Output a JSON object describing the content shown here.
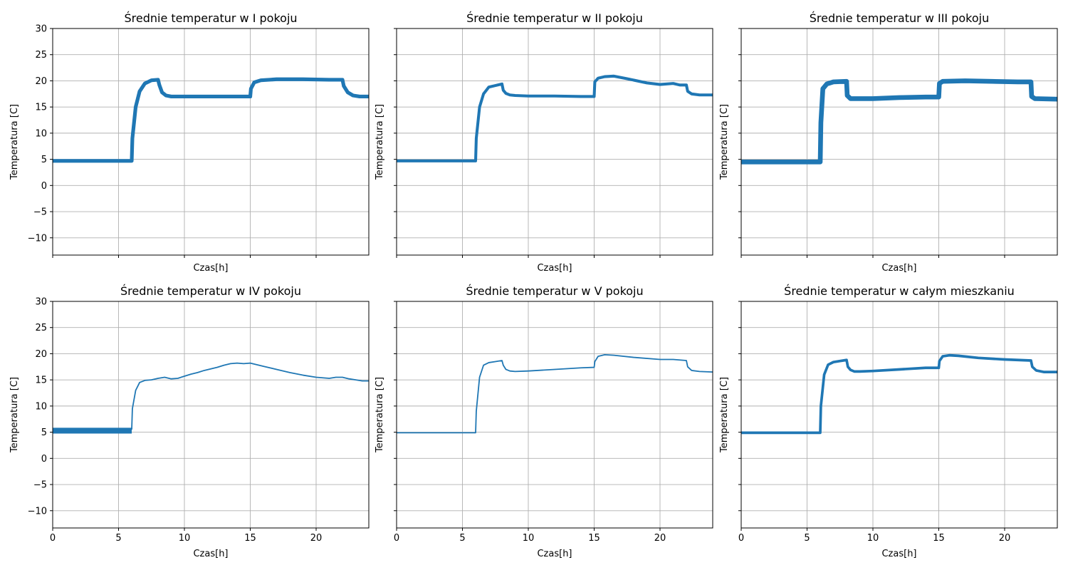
{
  "chart_data": [
    {
      "type": "line",
      "title": "Średnie temperatur w I pokoju",
      "xlabel": "Czas[h]",
      "ylabel": "Temperatura [C]",
      "xlim": [
        0,
        24
      ],
      "ylim": [
        -13.3,
        30
      ],
      "xticks": [
        0,
        5,
        10,
        15,
        20
      ],
      "yticks": [
        -10,
        -5,
        0,
        5,
        10,
        15,
        20,
        25,
        30
      ],
      "grid": true,
      "show_xticklabels": false,
      "show_yticklabels": true,
      "color": "#1f77b4",
      "band": 0.5,
      "series": [
        {
          "x": [
            0,
            6.0,
            6.05,
            6.3,
            6.6,
            7.0,
            7.5,
            8.0,
            8.1,
            8.3,
            8.6,
            9.0,
            10,
            12,
            14,
            15.0,
            15.05,
            15.3,
            15.8,
            17,
            19,
            21,
            22.0,
            22.1,
            22.4,
            22.8,
            23.3,
            24
          ],
          "y": [
            4.7,
            4.7,
            9,
            15,
            18,
            19.5,
            20.1,
            20.2,
            19.2,
            17.8,
            17.2,
            17.0,
            17.0,
            17.0,
            17.0,
            17.0,
            18.5,
            19.7,
            20.1,
            20.3,
            20.3,
            20.2,
            20.2,
            19.0,
            17.8,
            17.2,
            17.0,
            17.0
          ]
        }
      ]
    },
    {
      "type": "line",
      "title": "Średnie temperatur w II pokoju",
      "xlabel": "Czas[h]",
      "ylabel": "Temperatura [C]",
      "xlim": [
        0,
        24
      ],
      "ylim": [
        -13.3,
        30
      ],
      "xticks": [
        0,
        5,
        10,
        15,
        20
      ],
      "yticks": [
        -10,
        -5,
        0,
        5,
        10,
        15,
        20,
        25,
        30
      ],
      "grid": true,
      "show_xticklabels": false,
      "show_yticklabels": false,
      "color": "#1f77b4",
      "band": 0.35,
      "series": [
        {
          "x": [
            0,
            6.0,
            6.05,
            6.3,
            6.6,
            7.0,
            7.5,
            8.0,
            8.1,
            8.3,
            8.6,
            9.0,
            10,
            12,
            14,
            15.0,
            15.05,
            15.3,
            15.8,
            16.5,
            17.5,
            19,
            20,
            21,
            21.5,
            22.0,
            22.1,
            22.4,
            23,
            24
          ],
          "y": [
            4.7,
            4.7,
            9,
            15,
            17.5,
            18.8,
            19.1,
            19.4,
            18.2,
            17.6,
            17.3,
            17.2,
            17.1,
            17.1,
            17.0,
            17.0,
            19.8,
            20.5,
            20.8,
            20.9,
            20.4,
            19.6,
            19.3,
            19.5,
            19.2,
            19.2,
            18.0,
            17.5,
            17.3,
            17.3
          ]
        }
      ]
    },
    {
      "type": "line",
      "title": "Średnie temperatur w III pokoju",
      "xlabel": "Czas[h]",
      "ylabel": "Temperatura [C]",
      "xlim": [
        0,
        24
      ],
      "ylim": [
        -13.3,
        30
      ],
      "xticks": [
        0,
        5,
        10,
        15,
        20
      ],
      "yticks": [
        -10,
        -5,
        0,
        5,
        10,
        15,
        20,
        25,
        30
      ],
      "grid": true,
      "show_xticklabels": false,
      "show_yticklabels": false,
      "color": "#1f77b4",
      "band": 0.7,
      "series": [
        {
          "x": [
            0,
            6.0,
            6.05,
            6.2,
            6.5,
            7.0,
            8.0,
            8.05,
            8.3,
            10,
            12,
            14,
            15.0,
            15.05,
            15.3,
            17,
            19,
            21,
            22.0,
            22.05,
            22.3,
            24
          ],
          "y": [
            4.5,
            4.5,
            12,
            18.5,
            19.4,
            19.8,
            19.9,
            17.2,
            16.6,
            16.6,
            16.8,
            16.9,
            16.9,
            19.5,
            19.9,
            20.0,
            19.9,
            19.8,
            19.8,
            17.0,
            16.6,
            16.5
          ]
        }
      ]
    },
    {
      "type": "line",
      "title": "Średnie temperatur w IV pokoju",
      "xlabel": "Czas[h]",
      "ylabel": "Temperatura [C]",
      "xlim": [
        0,
        24
      ],
      "ylim": [
        -13.3,
        30
      ],
      "xticks": [
        0,
        5,
        10,
        15,
        20
      ],
      "yticks": [
        -10,
        -5,
        0,
        5,
        10,
        15,
        20,
        25,
        30
      ],
      "grid": true,
      "show_xticklabels": true,
      "show_yticklabels": true,
      "color": "#1f77b4",
      "band": 0,
      "series": [
        {
          "x": [
            0,
            6.0
          ],
          "y": [
            5.3,
            5.3
          ],
          "band": 0.9
        },
        {
          "x": [
            6.0,
            6.05,
            6.3,
            6.6,
            7.0,
            7.5,
            8.0,
            8.5,
            9.0,
            9.5,
            10.0,
            10.5,
            11.0,
            11.5,
            12.0,
            12.5,
            13.0,
            13.5,
            14.0,
            14.5,
            15.0,
            15.5,
            16.0,
            17.0,
            18.0,
            19.0,
            20.0,
            20.5,
            21.0,
            21.5,
            22.0,
            22.5,
            23.0,
            23.5,
            24.0
          ],
          "y": [
            5.5,
            9.5,
            13.0,
            14.5,
            14.9,
            15.0,
            15.3,
            15.5,
            15.2,
            15.3,
            15.7,
            16.1,
            16.4,
            16.8,
            17.1,
            17.4,
            17.8,
            18.1,
            18.2,
            18.1,
            18.2,
            17.9,
            17.6,
            17.0,
            16.4,
            15.9,
            15.5,
            15.4,
            15.3,
            15.5,
            15.5,
            15.2,
            15.0,
            14.8,
            14.8
          ]
        }
      ]
    },
    {
      "type": "line",
      "title": "Średnie temperatur w V pokoju",
      "xlabel": "Czas[h]",
      "ylabel": "Temperatura [C]",
      "xlim": [
        0,
        24
      ],
      "ylim": [
        -13.3,
        30
      ],
      "xticks": [
        0,
        5,
        10,
        15,
        20
      ],
      "yticks": [
        -10,
        -5,
        0,
        5,
        10,
        15,
        20,
        25,
        30
      ],
      "grid": true,
      "show_xticklabels": true,
      "show_yticklabels": false,
      "color": "#1f77b4",
      "band": 0,
      "series": [
        {
          "x": [
            0,
            6.0,
            6.05,
            6.3,
            6.6,
            7.0,
            7.5,
            8.0,
            8.1,
            8.3,
            8.6,
            9.0,
            10,
            12,
            14,
            15.0,
            15.05,
            15.3,
            15.8,
            16.5,
            18,
            20,
            21,
            22.0,
            22.1,
            22.4,
            23,
            24
          ],
          "y": [
            4.9,
            4.9,
            9,
            15.5,
            17.8,
            18.3,
            18.5,
            18.7,
            17.8,
            17.0,
            16.7,
            16.6,
            16.7,
            17.0,
            17.3,
            17.4,
            18.5,
            19.5,
            19.8,
            19.7,
            19.3,
            18.9,
            18.9,
            18.7,
            17.5,
            16.8,
            16.6,
            16.5
          ]
        }
      ]
    },
    {
      "type": "line",
      "title": "Średnie temperatur w całym mieszkaniu",
      "xlabel": "Czas[h]",
      "ylabel": "Temperatura [C]",
      "xlim": [
        0,
        24
      ],
      "ylim": [
        -13.3,
        30
      ],
      "xticks": [
        0,
        5,
        10,
        15,
        20
      ],
      "yticks": [
        -10,
        -5,
        0,
        5,
        10,
        15,
        20,
        25,
        30
      ],
      "grid": true,
      "show_xticklabels": true,
      "show_yticklabels": false,
      "color": "#1f77b4",
      "band": 0.3,
      "series": [
        {
          "x": [
            0,
            6.0,
            6.05,
            6.3,
            6.6,
            7.0,
            7.5,
            8.0,
            8.1,
            8.3,
            8.6,
            9.0,
            10,
            12,
            14,
            15.0,
            15.05,
            15.3,
            15.8,
            16.5,
            18,
            20,
            21,
            22.0,
            22.1,
            22.4,
            23,
            24
          ],
          "y": [
            4.9,
            4.9,
            10,
            16.0,
            17.9,
            18.4,
            18.6,
            18.8,
            17.5,
            16.9,
            16.6,
            16.6,
            16.7,
            17.0,
            17.3,
            17.3,
            18.6,
            19.5,
            19.7,
            19.6,
            19.2,
            18.9,
            18.8,
            18.7,
            17.5,
            16.8,
            16.5,
            16.5
          ]
        }
      ]
    }
  ]
}
